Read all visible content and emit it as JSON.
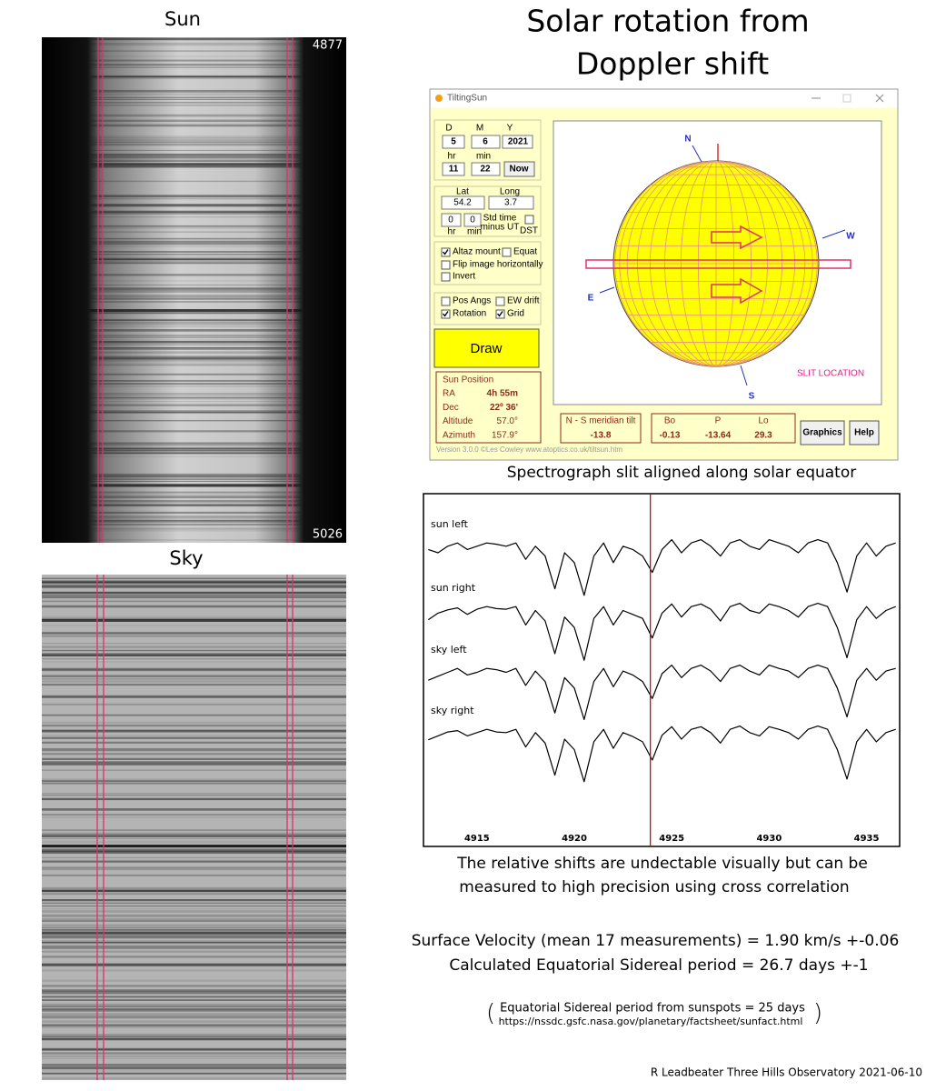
{
  "sun_panel": {
    "label": "Sun",
    "top_wavelength": "4877",
    "bottom_wavelength": "5026"
  },
  "sky_panel": {
    "label": "Sky"
  },
  "title": [
    "Solar rotation from",
    "Doppler shift"
  ],
  "window": {
    "title": "TiltingSun",
    "date_labels": [
      "D",
      "M",
      "Y"
    ],
    "date_values": [
      "5",
      "6",
      "2021"
    ],
    "time_labels": [
      "hr",
      "min"
    ],
    "time_values": [
      "11",
      "22"
    ],
    "now_button": "Now",
    "location_labels": [
      "Lat",
      "Long"
    ],
    "location_values": [
      "54.2",
      "3.7"
    ],
    "offset_values": [
      "0",
      "0"
    ],
    "offset_units": [
      "hr",
      "min"
    ],
    "offset_label": [
      "Std time",
      "minus UT"
    ],
    "dst_label": "DST",
    "options": [
      {
        "label": "Altaz mount",
        "checked": true
      },
      {
        "label": "Equat",
        "checked": false
      },
      {
        "label": "Flip image horizontally",
        "checked": false
      },
      {
        "label": "Invert",
        "checked": false
      }
    ],
    "display_options": [
      {
        "label": "Pos Angs",
        "checked": false
      },
      {
        "label": "EW drift",
        "checked": false
      },
      {
        "label": "Rotation",
        "checked": true
      },
      {
        "label": "Grid",
        "checked": true
      }
    ],
    "draw_button": "Draw",
    "sun_position": {
      "heading": "Sun Position",
      "rows": [
        [
          "RA",
          "4h 55m"
        ],
        [
          "Dec",
          "22º 36'"
        ],
        [
          "Altitude",
          "57.0°"
        ],
        [
          "Azimuth",
          "157.9°"
        ]
      ]
    },
    "version": "Version 3.0.0  ©Les Cowley www.atoptics.co.uk/tiltsun.htm",
    "globe_labels": {
      "north": "N",
      "west": "W",
      "east": "E",
      "south": "S"
    },
    "slit_label": "SLIT LOCATION",
    "meridian_tilt": {
      "label": "N - S meridian tilt",
      "value": "-13.8"
    },
    "orientation": {
      "labels": [
        "Bo",
        "P",
        "Lo"
      ],
      "values": [
        "-0.13",
        "-13.64",
        "29.3"
      ]
    },
    "buttons": [
      "Graphics",
      "Help"
    ]
  },
  "caption": "Spectrograph slit aligned along solar equator",
  "chart_data": {
    "type": "line",
    "x": [
      4912.5,
      4913,
      4913.5,
      4914,
      4914.5,
      4915,
      4915.5,
      4916,
      4916.5,
      4917,
      4917.5,
      4918,
      4918.5,
      4919,
      4919.5,
      4920,
      4920.5,
      4921,
      4921.5,
      4922,
      4922.5,
      4923,
      4923.5,
      4924,
      4924.5,
      4925,
      4925.5,
      4926,
      4926.5,
      4927,
      4927.5,
      4928,
      4928.5,
      4929,
      4929.5,
      4930,
      4930.5,
      4931,
      4931.5,
      4932,
      4932.5,
      4933,
      4933.5,
      4934,
      4934.5,
      4935,
      4935.5,
      4936,
      4936.5
    ],
    "series": [
      {
        "name": "sun left",
        "color": "#000000",
        "values": [
          0.8,
          0.75,
          0.85,
          0.9,
          0.8,
          0.85,
          0.9,
          0.88,
          0.85,
          0.9,
          0.65,
          0.85,
          0.7,
          0.2,
          0.75,
          0.6,
          0.1,
          0.7,
          0.9,
          0.6,
          0.85,
          0.8,
          0.7,
          0.45,
          0.8,
          0.95,
          0.75,
          0.9,
          0.95,
          0.85,
          0.7,
          0.9,
          0.95,
          0.85,
          0.8,
          0.95,
          0.9,
          0.85,
          0.75,
          0.9,
          0.95,
          0.9,
          0.6,
          0.15,
          0.7,
          0.9,
          0.7,
          0.85,
          0.9
        ]
      },
      {
        "name": "sun right",
        "color": "#000000",
        "values": [
          0.7,
          0.8,
          0.85,
          0.88,
          0.78,
          0.86,
          0.9,
          0.87,
          0.86,
          0.9,
          0.62,
          0.84,
          0.68,
          0.18,
          0.74,
          0.58,
          0.08,
          0.72,
          0.9,
          0.62,
          0.84,
          0.78,
          0.72,
          0.42,
          0.8,
          0.94,
          0.74,
          0.9,
          0.94,
          0.86,
          0.68,
          0.9,
          0.95,
          0.84,
          0.8,
          0.94,
          0.9,
          0.84,
          0.74,
          0.9,
          0.95,
          0.9,
          0.58,
          0.12,
          0.7,
          0.9,
          0.72,
          0.84,
          0.9
        ]
      },
      {
        "name": "sky left",
        "color": "#000000",
        "values": [
          0.72,
          0.78,
          0.84,
          0.9,
          0.8,
          0.84,
          0.9,
          0.88,
          0.84,
          0.9,
          0.64,
          0.86,
          0.7,
          0.22,
          0.76,
          0.6,
          0.12,
          0.7,
          0.9,
          0.62,
          0.86,
          0.8,
          0.7,
          0.44,
          0.82,
          0.95,
          0.76,
          0.9,
          0.95,
          0.86,
          0.7,
          0.9,
          0.95,
          0.86,
          0.8,
          0.95,
          0.9,
          0.86,
          0.76,
          0.9,
          0.95,
          0.9,
          0.6,
          0.16,
          0.72,
          0.9,
          0.72,
          0.86,
          0.9
        ]
      },
      {
        "name": "sky right",
        "color": "#000000",
        "values": [
          0.74,
          0.8,
          0.86,
          0.88,
          0.8,
          0.85,
          0.9,
          0.86,
          0.85,
          0.9,
          0.63,
          0.85,
          0.69,
          0.2,
          0.75,
          0.59,
          0.1,
          0.71,
          0.9,
          0.61,
          0.85,
          0.79,
          0.71,
          0.43,
          0.81,
          0.94,
          0.75,
          0.9,
          0.94,
          0.85,
          0.69,
          0.9,
          0.95,
          0.85,
          0.8,
          0.94,
          0.9,
          0.85,
          0.75,
          0.9,
          0.95,
          0.9,
          0.59,
          0.14,
          0.71,
          0.9,
          0.71,
          0.85,
          0.9
        ]
      }
    ],
    "xlim": [
      4912.3,
      4936.7
    ],
    "xticks": [
      4915,
      4920,
      4925,
      4930,
      4935
    ],
    "ylim": [
      0,
      1
    ],
    "marker_x": 4923.9,
    "marker_color": "#e00000"
  },
  "notes": [
    "The relative shifts are undectable visually but can be",
    "measured to high precision using cross correlation"
  ],
  "results": [
    "Surface Velocity (mean 17 measurements) = 1.90 km/s +-0.06",
    "Calculated Equatorial Sidereal period = 26.7 days +-1"
  ],
  "reference": [
    "Equatorial Sidereal period from sunspots = 25 days",
    "https://nssdc.gsfc.nasa.gov/planetary/factsheet/sunfact.html"
  ],
  "credit": "R Leadbeater Three Hills Observatory  2021-06-10"
}
